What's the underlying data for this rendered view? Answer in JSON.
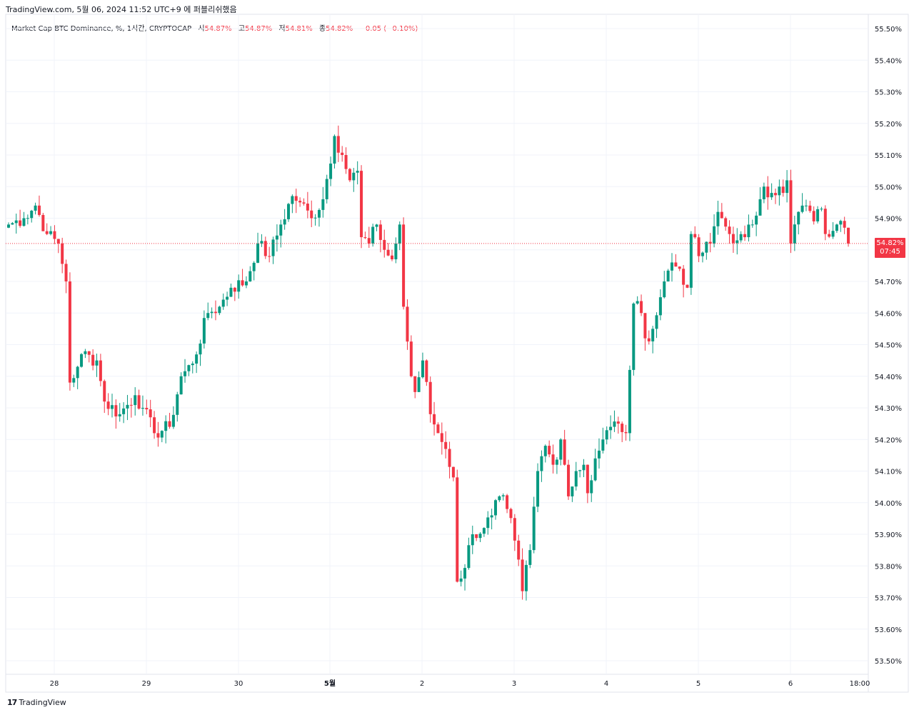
{
  "header": {
    "published": "TradingView.com, 5월 06, 2024 11:52 UTC+9 에 퍼블리쉬했음"
  },
  "legend": {
    "symbol": "Market Cap BTC Dominance, %, 1시간, CRYPTOCAP",
    "open_label": "시",
    "open_value": "54.87%",
    "high_label": "고",
    "high_value": "54.87%",
    "low_label": "저",
    "low_value": "54.81%",
    "close_label": "종",
    "close_value": "54.82%",
    "change": "−0.05 (−0.10%)"
  },
  "price_tag": {
    "price": "54.82%",
    "countdown": "07:45"
  },
  "brand": {
    "name": "TradingView"
  },
  "colors": {
    "up": "#089981",
    "down": "#f23645",
    "grid": "#f0f3fa",
    "text": "#131722"
  },
  "chart_data": {
    "type": "candlestick",
    "unit": "%",
    "y_ticks": [
      "55.50%",
      "55.40%",
      "55.30%",
      "55.20%",
      "55.10%",
      "55.00%",
      "54.90%",
      "54.80%",
      "54.70%",
      "54.60%",
      "54.50%",
      "54.40%",
      "54.30%",
      "54.20%",
      "54.10%",
      "54.00%",
      "53.90%",
      "53.80%",
      "53.70%",
      "53.60%",
      "53.50%"
    ],
    "ylim": [
      53.47,
      55.53
    ],
    "x_ticks": [
      "28",
      "29",
      "30",
      "5월",
      "2",
      "3",
      "4",
      "5",
      "6",
      "18:00"
    ],
    "current_price": 54.82,
    "grid": true,
    "waypoints": [
      [
        0,
        54.88
      ],
      [
        4,
        54.9
      ],
      [
        7,
        54.94
      ],
      [
        10,
        54.85
      ],
      [
        13,
        54.82
      ],
      [
        15,
        54.7
      ],
      [
        16,
        54.38
      ],
      [
        18,
        54.43
      ],
      [
        19,
        54.47
      ],
      [
        23,
        54.45
      ],
      [
        25,
        54.32
      ],
      [
        29,
        54.28
      ],
      [
        33,
        54.34
      ],
      [
        35,
        54.3
      ],
      [
        38,
        54.22
      ],
      [
        42,
        54.24
      ],
      [
        45,
        54.4
      ],
      [
        48,
        54.44
      ],
      [
        52,
        54.6
      ],
      [
        55,
        54.62
      ],
      [
        58,
        54.68
      ],
      [
        62,
        54.7
      ],
      [
        65,
        54.82
      ],
      [
        68,
        54.78
      ],
      [
        71,
        54.88
      ],
      [
        74,
        54.97
      ],
      [
        76,
        54.95
      ],
      [
        79,
        54.9
      ],
      [
        82,
        54.96
      ],
      [
        85,
        55.16
      ],
      [
        87,
        55.1
      ],
      [
        89,
        55.02
      ],
      [
        91,
        55.05
      ],
      [
        92,
        54.84
      ],
      [
        94,
        54.82
      ],
      [
        96,
        54.88
      ],
      [
        98,
        54.8
      ],
      [
        100,
        54.77
      ],
      [
        101,
        54.82
      ],
      [
        102,
        54.88
      ],
      [
        103,
        54.62
      ],
      [
        105,
        54.4
      ],
      [
        106,
        54.35
      ],
      [
        108,
        54.45
      ],
      [
        110,
        54.28
      ],
      [
        112,
        54.22
      ],
      [
        114,
        54.17
      ],
      [
        116,
        54.08
      ],
      [
        117,
        53.75
      ],
      [
        118,
        53.76
      ],
      [
        121,
        53.9
      ],
      [
        124,
        53.92
      ],
      [
        126,
        53.96
      ],
      [
        128,
        54.02
      ],
      [
        130,
        53.98
      ],
      [
        132,
        53.88
      ],
      [
        133,
        53.82
      ],
      [
        134,
        53.72
      ],
      [
        136,
        53.85
      ],
      [
        138,
        54.1
      ],
      [
        140,
        54.18
      ],
      [
        142,
        54.12
      ],
      [
        144,
        54.2
      ],
      [
        145,
        54.12
      ],
      [
        146,
        54.02
      ],
      [
        148,
        54.1
      ],
      [
        150,
        54.12
      ],
      [
        151,
        54.03
      ],
      [
        153,
        54.14
      ],
      [
        155,
        54.2
      ],
      [
        157,
        54.24
      ],
      [
        159,
        54.25
      ],
      [
        161,
        54.22
      ],
      [
        162,
        54.42
      ],
      [
        163,
        54.63
      ],
      [
        165,
        54.6
      ],
      [
        166,
        54.52
      ],
      [
        168,
        54.55
      ],
      [
        170,
        54.65
      ],
      [
        171,
        54.7
      ],
      [
        173,
        54.76
      ],
      [
        175,
        54.74
      ],
      [
        177,
        54.68
      ],
      [
        178,
        54.85
      ],
      [
        180,
        54.78
      ],
      [
        183,
        54.82
      ],
      [
        185,
        54.92
      ],
      [
        186,
        54.9
      ],
      [
        188,
        54.85
      ],
      [
        190,
        54.83
      ],
      [
        192,
        54.84
      ],
      [
        194,
        54.88
      ],
      [
        196,
        54.96
      ],
      [
        197,
        55.0
      ],
      [
        199,
        54.98
      ],
      [
        201,
        55.0
      ],
      [
        202,
        54.98
      ],
      [
        203,
        55.02
      ],
      [
        204,
        54.82
      ],
      [
        206,
        54.92
      ],
      [
        208,
        54.94
      ],
      [
        210,
        54.89
      ],
      [
        212,
        54.93
      ],
      [
        213,
        54.85
      ],
      [
        215,
        54.86
      ],
      [
        216,
        54.88
      ],
      [
        218,
        54.87
      ],
      [
        219,
        54.82
      ]
    ],
    "last_bar": {
      "open": 54.87,
      "high": 54.87,
      "low": 54.81,
      "close": 54.82
    }
  }
}
